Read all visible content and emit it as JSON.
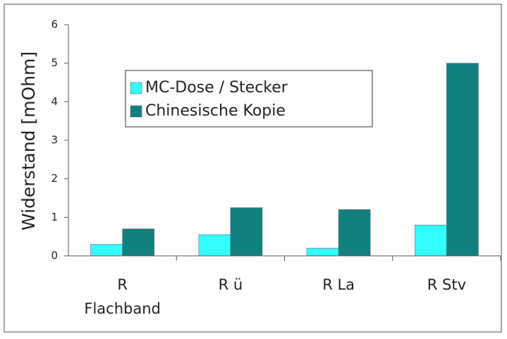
{
  "chart_data": {
    "type": "bar",
    "y_label": "Widerstand [mOhm]",
    "categories": [
      "R\nFlachband",
      "R ü",
      "R La",
      "R Stv"
    ],
    "series": [
      {
        "name": "MC-Dose / Stecker",
        "color": "#33ffff",
        "values": [
          0.3,
          0.55,
          0.2,
          0.8
        ]
      },
      {
        "name": "Chinesische Kopie",
        "color": "#138080",
        "values": [
          0.7,
          1.25,
          1.2,
          5.0
        ]
      }
    ],
    "ylim": [
      0,
      6
    ],
    "yticks": [
      0,
      1,
      2,
      3,
      4,
      5,
      6
    ],
    "grid": false
  }
}
